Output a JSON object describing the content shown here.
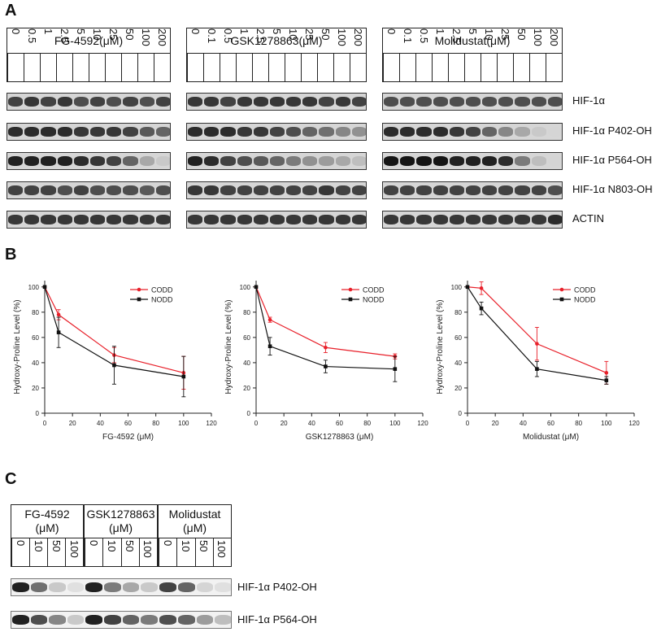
{
  "panels": {
    "a": "A",
    "b": "B",
    "c": "C"
  },
  "panel_a": {
    "groups": [
      {
        "title": "FG-4592(μM)",
        "lanes": [
          "0",
          "0.5",
          "1",
          "2.5",
          "5",
          "10",
          "25",
          "50",
          "100",
          "200"
        ]
      },
      {
        "title": "GSK1278863(μM)",
        "lanes": [
          "0",
          "0.1",
          "0.5",
          "1",
          "2.5",
          "5",
          "10",
          "25",
          "50",
          "100",
          "200"
        ]
      },
      {
        "title": "Molidustat(μM)",
        "lanes": [
          "0",
          "0.1",
          "0.5",
          "1",
          "2.5",
          "5",
          "10",
          "25",
          "50",
          "100",
          "200"
        ]
      }
    ],
    "blots": [
      {
        "label": "HIF-1α",
        "g": [
          [
            0.75,
            0.8,
            0.75,
            0.8,
            0.7,
            0.75,
            0.7,
            0.75,
            0.7,
            0.75
          ],
          [
            0.8,
            0.8,
            0.75,
            0.8,
            0.8,
            0.8,
            0.8,
            0.8,
            0.75,
            0.8,
            0.75
          ],
          [
            0.7,
            0.7,
            0.7,
            0.7,
            0.7,
            0.7,
            0.7,
            0.7,
            0.7,
            0.7,
            0.7
          ]
        ]
      },
      {
        "label": "HIF-1α P402-OH",
        "g": [
          [
            0.85,
            0.85,
            0.85,
            0.85,
            0.8,
            0.8,
            0.8,
            0.75,
            0.65,
            0.6
          ],
          [
            0.85,
            0.85,
            0.85,
            0.8,
            0.8,
            0.75,
            0.7,
            0.6,
            0.55,
            0.45,
            0.4
          ],
          [
            0.85,
            0.85,
            0.85,
            0.85,
            0.8,
            0.75,
            0.6,
            0.45,
            0.3,
            0.15,
            0.1
          ]
        ]
      },
      {
        "label": "HIF-1α P564-OH",
        "g": [
          [
            0.9,
            0.9,
            0.9,
            0.9,
            0.85,
            0.8,
            0.75,
            0.6,
            0.3,
            0.15
          ],
          [
            0.9,
            0.85,
            0.75,
            0.7,
            0.65,
            0.6,
            0.5,
            0.4,
            0.35,
            0.3,
            0.2
          ],
          [
            0.95,
            0.95,
            0.95,
            0.95,
            0.9,
            0.9,
            0.9,
            0.85,
            0.5,
            0.2,
            0.1
          ]
        ]
      },
      {
        "label": "HIF-1α N803-OH",
        "g": [
          [
            0.75,
            0.75,
            0.75,
            0.7,
            0.75,
            0.7,
            0.7,
            0.7,
            0.65,
            0.7
          ],
          [
            0.8,
            0.8,
            0.75,
            0.75,
            0.75,
            0.75,
            0.75,
            0.75,
            0.8,
            0.75,
            0.75
          ],
          [
            0.75,
            0.75,
            0.75,
            0.75,
            0.75,
            0.75,
            0.75,
            0.75,
            0.75,
            0.75,
            0.7
          ]
        ]
      },
      {
        "label": "ACTIN",
        "g": [
          [
            0.8,
            0.8,
            0.8,
            0.8,
            0.8,
            0.8,
            0.8,
            0.8,
            0.8,
            0.8
          ],
          [
            0.8,
            0.8,
            0.8,
            0.8,
            0.8,
            0.8,
            0.8,
            0.8,
            0.8,
            0.8,
            0.8
          ],
          [
            0.8,
            0.8,
            0.8,
            0.8,
            0.8,
            0.8,
            0.8,
            0.8,
            0.8,
            0.8,
            0.85
          ]
        ]
      }
    ]
  },
  "panel_c": {
    "groups": [
      {
        "title_line1": "FG-4592",
        "title_line2": "(μM)",
        "lanes": [
          "0",
          "10",
          "50",
          "100"
        ]
      },
      {
        "title_line1": "GSK1278863",
        "title_line2": "(μM)",
        "lanes": [
          "0",
          "10",
          "50",
          "100"
        ]
      },
      {
        "title_line1": "Molidustat",
        "title_line2": "(μM)",
        "lanes": [
          "0",
          "10",
          "50",
          "100"
        ]
      }
    ],
    "blots": [
      {
        "label": "HIF-1α P402-OH",
        "g": [
          [
            0.9,
            0.55,
            0.15,
            0.05
          ],
          [
            0.9,
            0.5,
            0.3,
            0.15
          ],
          [
            0.75,
            0.6,
            0.1,
            0.05
          ]
        ]
      },
      {
        "label": "HIF-1α P564-OH",
        "g": [
          [
            0.9,
            0.7,
            0.45,
            0.15
          ],
          [
            0.9,
            0.75,
            0.6,
            0.5
          ],
          [
            0.7,
            0.6,
            0.35,
            0.2
          ]
        ]
      }
    ]
  },
  "chart_data": [
    {
      "type": "line",
      "xlabel": "FG-4592 (μM)",
      "ylabel": "Hydroxy-Proline Level (%)",
      "xlim": [
        0,
        120
      ],
      "ylim": [
        0,
        105
      ],
      "xticks": [
        "0",
        "20",
        "40",
        "60",
        "80",
        "100",
        "120"
      ],
      "yticks": [
        "0",
        "20",
        "40",
        "60",
        "80",
        "100"
      ],
      "legend_position": "top-right",
      "x": [
        0,
        10,
        50,
        100
      ],
      "series": [
        {
          "name": "CODD",
          "color": "#e8202a",
          "values": [
            100,
            78,
            46,
            32
          ],
          "err": [
            0,
            4,
            6,
            13
          ]
        },
        {
          "name": "NODD",
          "color": "#111111",
          "values": [
            100,
            64,
            38,
            29
          ],
          "err": [
            0,
            12,
            15,
            16
          ]
        }
      ]
    },
    {
      "type": "line",
      "xlabel": "GSK1278863 (μM)",
      "ylabel": "Hydroxy-Proline Level (%)",
      "xlim": [
        0,
        120
      ],
      "ylim": [
        0,
        105
      ],
      "xticks": [
        "0",
        "20",
        "40",
        "60",
        "80",
        "100",
        "120"
      ],
      "yticks": [
        "0",
        "20",
        "40",
        "60",
        "80",
        "100"
      ],
      "legend_position": "top-right",
      "x": [
        0,
        10,
        50,
        100
      ],
      "series": [
        {
          "name": "CODD",
          "color": "#e8202a",
          "values": [
            100,
            74,
            52,
            45
          ],
          "err": [
            0,
            2,
            4,
            2
          ]
        },
        {
          "name": "NODD",
          "color": "#111111",
          "values": [
            100,
            53,
            37,
            35
          ],
          "err": [
            0,
            7,
            5,
            10
          ]
        }
      ]
    },
    {
      "type": "line",
      "xlabel": "Molidustat (μM)",
      "ylabel": "Hydroxy-Proline Level (%)",
      "xlim": [
        0,
        120
      ],
      "ylim": [
        0,
        105
      ],
      "xticks": [
        "0",
        "20",
        "40",
        "60",
        "80",
        "100",
        "120"
      ],
      "yticks": [
        "0",
        "20",
        "40",
        "60",
        "80",
        "100"
      ],
      "legend_position": "top-right",
      "x": [
        0,
        10,
        50,
        100
      ],
      "series": [
        {
          "name": "CODD",
          "color": "#e8202a",
          "values": [
            100,
            99,
            55,
            32
          ],
          "err": [
            0,
            5,
            13,
            9
          ]
        },
        {
          "name": "NODD",
          "color": "#111111",
          "values": [
            100,
            83,
            35,
            26
          ],
          "err": [
            0,
            5,
            6,
            3
          ]
        }
      ]
    }
  ]
}
